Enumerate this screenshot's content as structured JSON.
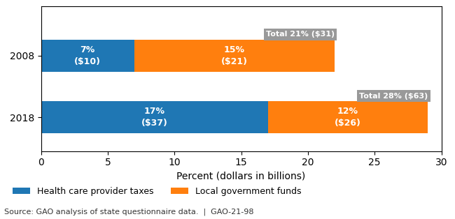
{
  "chart_data": {
    "type": "bar",
    "orientation": "horizontal",
    "stacked": true,
    "categories": [
      "2008",
      "2018"
    ],
    "series": [
      {
        "name": "Health care provider taxes",
        "values": [
          7,
          17
        ],
        "value_labels": [
          "7%\n($10)",
          "17%\n($37)"
        ]
      },
      {
        "name": "Local government funds",
        "values": [
          15,
          12
        ],
        "value_labels": [
          "15%\n($21)",
          "12%\n($26)"
        ]
      }
    ],
    "data_labels": true,
    "annotations": [
      {
        "category": "2008",
        "text": "Total 21% ($31)"
      },
      {
        "category": "2018",
        "text": "Total 28% ($63)"
      }
    ],
    "xlabel": "Percent (dollars in billions)",
    "xlim": [
      0,
      30
    ],
    "xticks": [
      0,
      5,
      10,
      15,
      20,
      25,
      30
    ],
    "grid": false,
    "legend": "lower left",
    "source": "Source: GAO analysis of state questionnaire data.  |  GAO-21-98"
  }
}
